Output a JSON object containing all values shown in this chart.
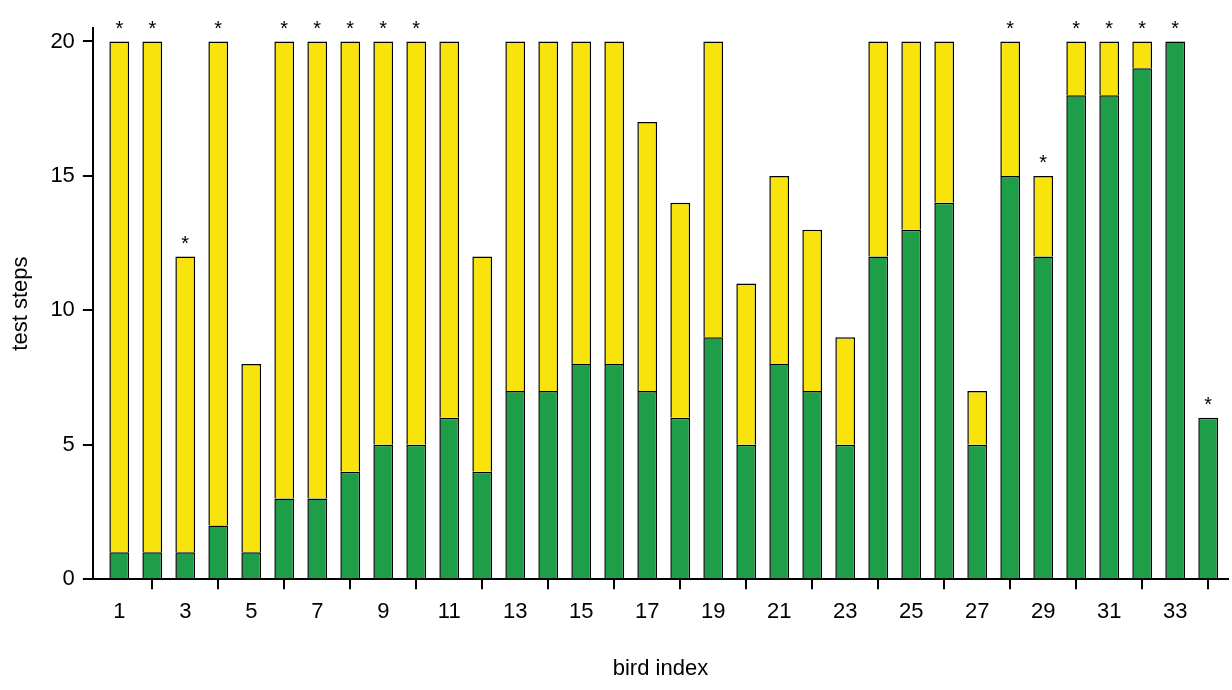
{
  "chart_data": {
    "type": "bar",
    "stacked": true,
    "xlabel": "bird index",
    "ylabel": "test steps",
    "x": [
      1,
      2,
      3,
      4,
      5,
      6,
      7,
      8,
      9,
      10,
      11,
      12,
      13,
      14,
      15,
      16,
      17,
      18,
      19,
      20,
      21,
      22,
      23,
      24,
      25,
      26,
      27,
      28,
      29,
      30,
      31,
      32,
      33,
      34
    ],
    "xlim": [
      0.2,
      34.6
    ],
    "xticks": [
      1,
      3,
      5,
      7,
      9,
      11,
      13,
      15,
      17,
      19,
      21,
      23,
      25,
      27,
      29,
      31,
      33
    ],
    "ylim": [
      0,
      20.5
    ],
    "yticks": [
      0,
      5,
      10,
      15,
      20
    ],
    "grid": false,
    "legend": false,
    "series": [
      {
        "color": "#1f9e4a",
        "values": [
          1,
          1,
          1,
          2,
          1,
          3,
          3,
          4,
          5,
          5,
          6,
          4,
          7,
          7,
          8,
          8,
          7,
          6,
          9,
          5,
          8,
          7,
          5,
          12,
          13,
          14,
          5,
          15,
          12,
          18,
          18,
          19,
          20,
          6
        ]
      },
      {
        "color": "#f8e40c",
        "values": [
          19,
          19,
          11,
          18,
          7,
          17,
          17,
          16,
          15,
          15,
          14,
          8,
          13,
          13,
          12,
          12,
          10,
          8,
          11,
          6,
          7,
          6,
          4,
          8,
          7,
          6,
          2,
          5,
          3,
          2,
          2,
          1,
          0,
          0
        ]
      }
    ],
    "annotations": [
      {
        "text": "*",
        "x": 1,
        "y": 20
      },
      {
        "text": "*",
        "x": 2,
        "y": 20
      },
      {
        "text": "*",
        "x": 3,
        "y": 12
      },
      {
        "text": "*",
        "x": 4,
        "y": 20
      },
      {
        "text": "*",
        "x": 6,
        "y": 20
      },
      {
        "text": "*",
        "x": 7,
        "y": 20
      },
      {
        "text": "*",
        "x": 8,
        "y": 20
      },
      {
        "text": "*",
        "x": 9,
        "y": 20
      },
      {
        "text": "*",
        "x": 10,
        "y": 20
      },
      {
        "text": "*",
        "x": 28,
        "y": 20
      },
      {
        "text": "*",
        "x": 29,
        "y": 15
      },
      {
        "text": "*",
        "x": 30,
        "y": 20
      },
      {
        "text": "*",
        "x": 31,
        "y": 20
      },
      {
        "text": "*",
        "x": 32,
        "y": 20
      },
      {
        "text": "*",
        "x": 33,
        "y": 20
      },
      {
        "text": "*",
        "x": 34,
        "y": 6
      }
    ]
  }
}
